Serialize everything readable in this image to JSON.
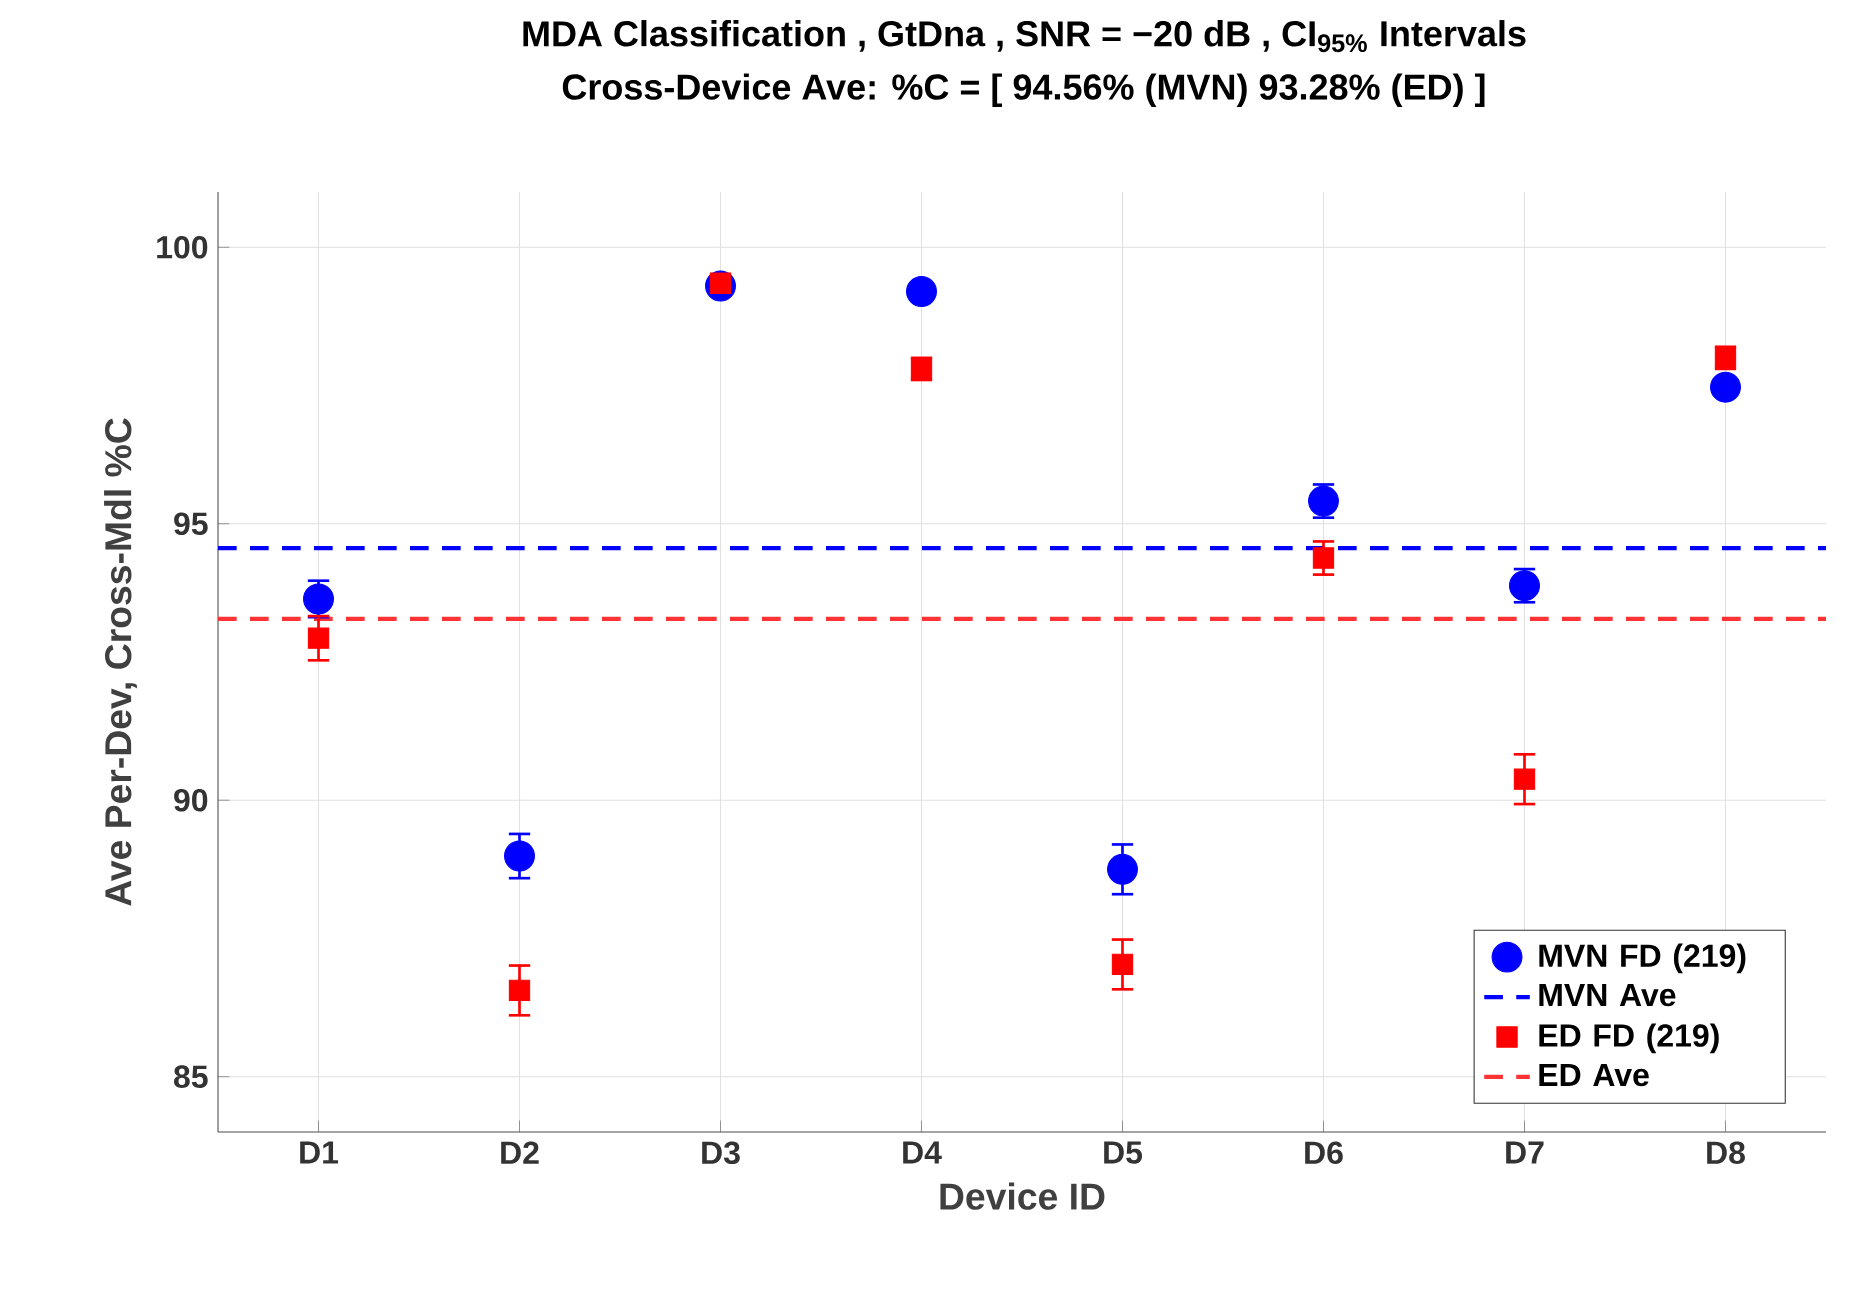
{
  "chart_data": {
    "type": "scatter",
    "title": "MDA Classification , GtDna , SNR = −20 dB , CI$_{95%}$ Intervals",
    "subtitle": "Cross-Device Ave: %C = [ 94.56% (MVN)   93.28% (ED) ]",
    "xlabel": "Device ID",
    "ylabel": "Ave Per-Dev, Cross-Mdl %C",
    "categories": [
      "D1",
      "D2",
      "D3",
      "D4",
      "D5",
      "D6",
      "D7",
      "D8"
    ],
    "series": [
      {
        "name": "MVN FD (219)",
        "color": "#0000ff",
        "marker": "circle",
        "values": [
          93.64,
          88.99,
          99.3,
          99.2,
          88.75,
          95.41,
          93.88,
          97.47
        ],
        "errors": [
          0.33,
          0.4,
          0.1,
          0.1,
          0.45,
          0.3,
          0.3,
          0.15
        ]
      },
      {
        "name": "ED FD (219)",
        "color": "#ff0000",
        "marker": "square",
        "values": [
          92.93,
          86.56,
          99.35,
          97.8,
          87.03,
          94.38,
          90.38,
          98.0
        ],
        "errors": [
          0.4,
          0.45,
          0.1,
          0.2,
          0.45,
          0.3,
          0.45,
          0.2
        ]
      }
    ],
    "ref_lines": [
      {
        "axis": "y",
        "value": 94.56,
        "label": "MVN Ave",
        "color": "#0000ff",
        "line_style": "dashed"
      },
      {
        "axis": "y",
        "value": 93.28,
        "label": "ED Ave",
        "color": "#ff3333",
        "line_style": "dashed"
      }
    ],
    "ylim": [
      84,
      101
    ],
    "yticks": [
      85,
      90,
      95,
      100
    ],
    "grid": true,
    "legend": "bottom right"
  }
}
